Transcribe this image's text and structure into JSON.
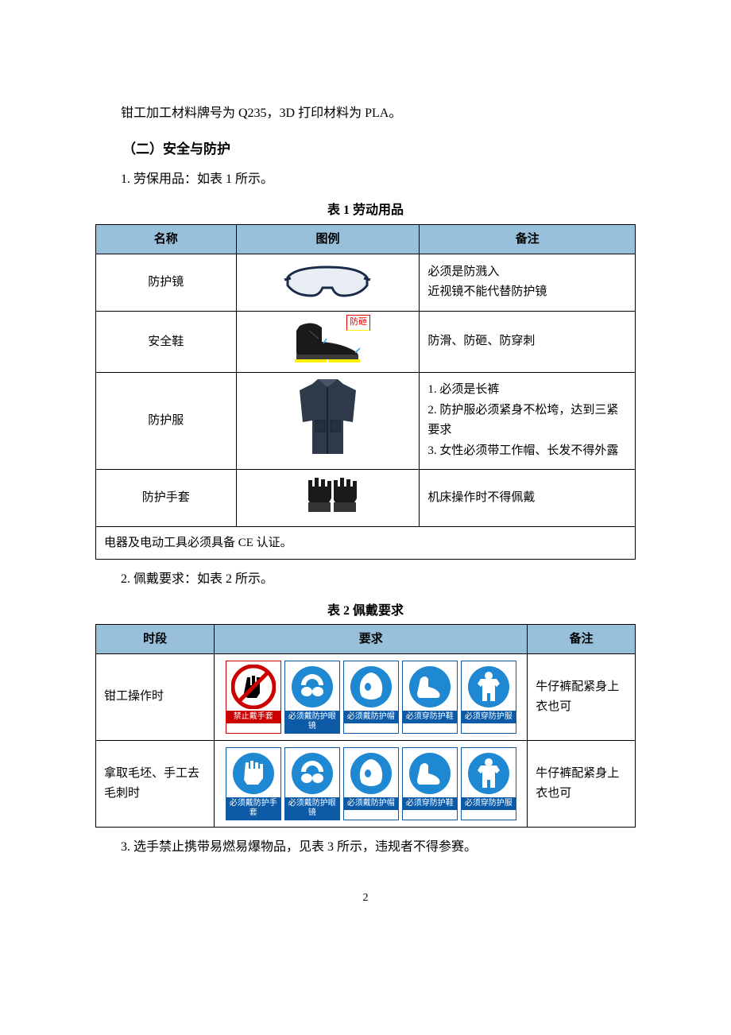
{
  "colors": {
    "header_bg": "#99c0db",
    "border": "#000000",
    "sign_blue": "#0d5aa7",
    "sign_red": "#cc0000",
    "shoe_label_red": "#e60000",
    "shoe_label_yellow": "#fff200"
  },
  "intro": "钳工加工材料牌号为 Q235，3D 打印材料为 PLA。",
  "section_title": "（二）安全与防护",
  "item1": "1. 劳保用品：如表 1 所示。",
  "table1": {
    "caption": "表 1  劳动用品",
    "headers": {
      "name": "名称",
      "img": "图例",
      "note": "备注"
    },
    "rows": [
      {
        "name": "防护镜",
        "icon": "goggles",
        "note": "必须是防溅入\n近视镜不能代替防护镜"
      },
      {
        "name": "安全鞋",
        "icon": "shoe",
        "shoe_tag": "防砸",
        "note": "防滑、防砸、防穿刺"
      },
      {
        "name": "防护服",
        "icon": "jacket",
        "note": "1. 必须是长裤\n2. 防护服必须紧身不松垮，达到三紧要求\n3. 女性必须带工作帽、长发不得外露"
      },
      {
        "name": "防护手套",
        "icon": "gloves",
        "note": "机床操作时不得佩戴"
      }
    ],
    "footer": "电器及电动工具必须具备 CE 认证。"
  },
  "item2": "2. 佩戴要求：如表 2 所示。",
  "table2": {
    "caption": "表 2  佩戴要求",
    "headers": {
      "time": "时段",
      "req": "要求",
      "note": "备注"
    },
    "sign_labels": {
      "no_gloves": "禁止戴手套",
      "goggles": "必须戴防护眼镜",
      "hat": "必须戴防护帽",
      "shoes": "必须穿防护鞋",
      "suit": "必须穿防护服",
      "gloves": "必须戴防护手套"
    },
    "rows": [
      {
        "time": "钳工操作时",
        "signs": [
          "no_gloves",
          "goggles",
          "hat",
          "shoes",
          "suit"
        ],
        "note": "牛仔裤配紧身上衣也可"
      },
      {
        "time": "拿取毛坯、手工去毛刺时",
        "signs": [
          "gloves",
          "goggles",
          "hat",
          "shoes",
          "suit"
        ],
        "note": "牛仔裤配紧身上衣也可"
      }
    ]
  },
  "item3": "3. 选手禁止携带易燃易爆物品，见表 3 所示，违规者不得参赛。",
  "page_number": "2"
}
